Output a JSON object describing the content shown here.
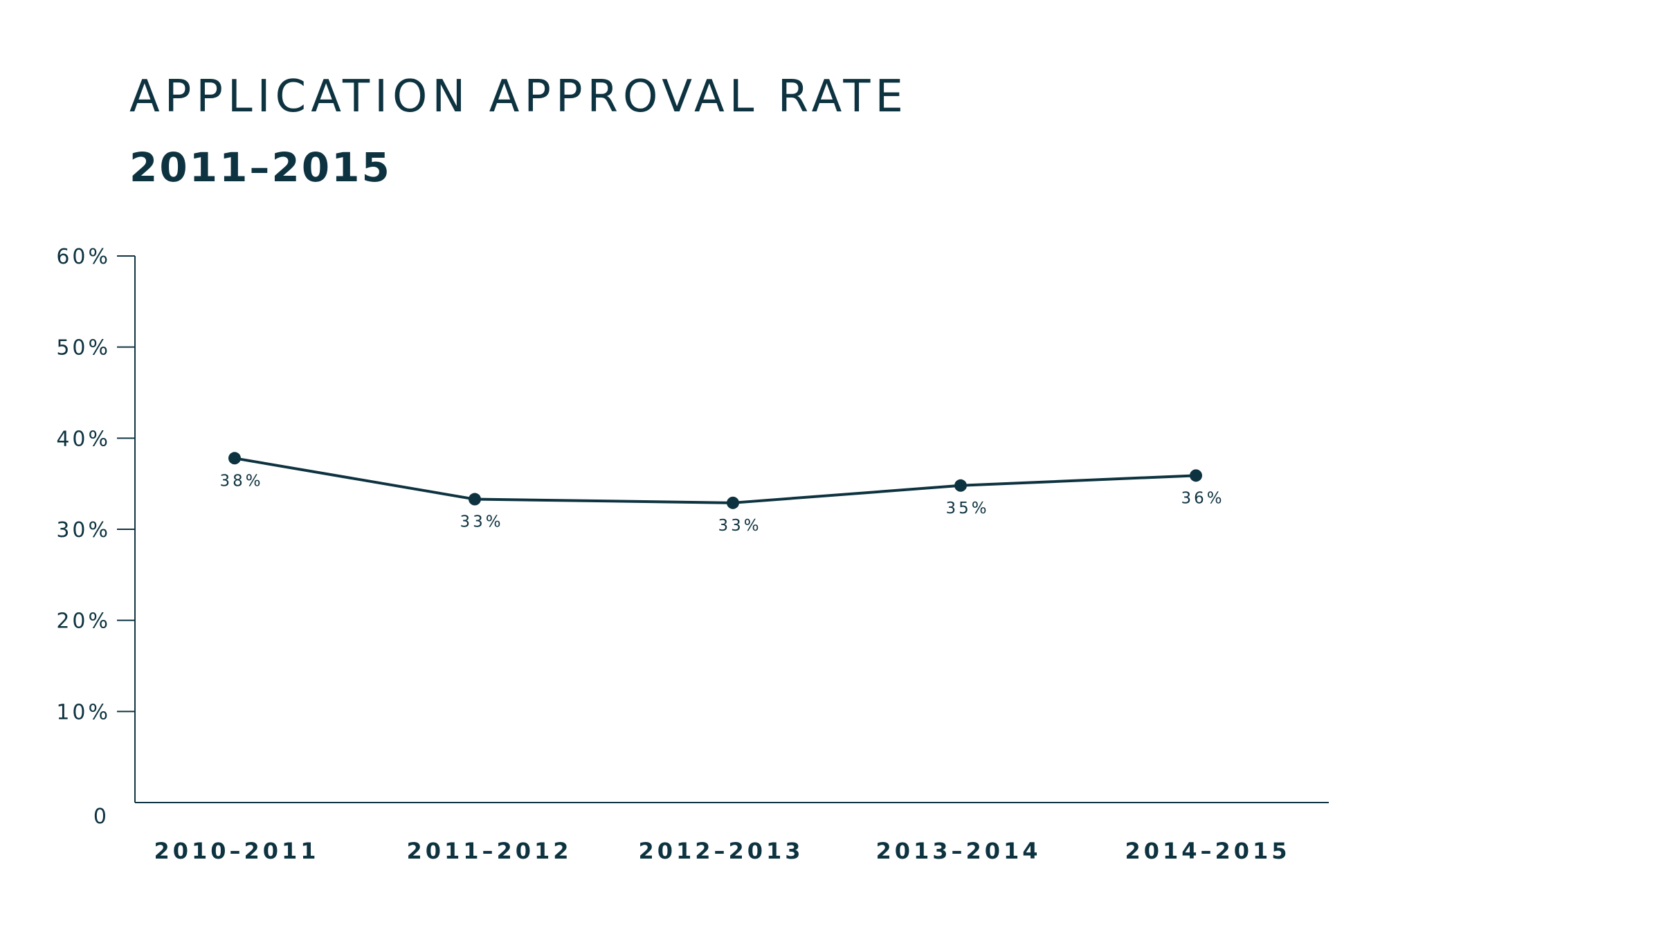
{
  "chart_data": {
    "type": "line",
    "title": "APPLICATION APPROVAL RATE",
    "subtitle": "2011–2015",
    "xlabel": "",
    "ylabel": "",
    "categories": [
      "2010–2011",
      "2011–2012",
      "2012–2013",
      "2013–2014",
      "2014–2015"
    ],
    "series": [
      {
        "values": [
          37.8,
          33.3,
          32.9,
          34.8,
          35.9
        ],
        "data_labels": [
          "38%",
          "33%",
          "33%",
          "35%",
          "36%"
        ],
        "color": "#0e3340"
      }
    ],
    "ylim": [
      0,
      60
    ],
    "yticks": [
      0,
      10,
      20,
      30,
      40,
      50,
      60
    ],
    "ytick_labels": [
      "0",
      "10%",
      "20%",
      "30%",
      "40%",
      "50%",
      "60%"
    ],
    "grid": false,
    "legend": "none",
    "colors": {
      "text": "#0e3340",
      "line": "#0e3340",
      "background": "#ffffff"
    }
  }
}
